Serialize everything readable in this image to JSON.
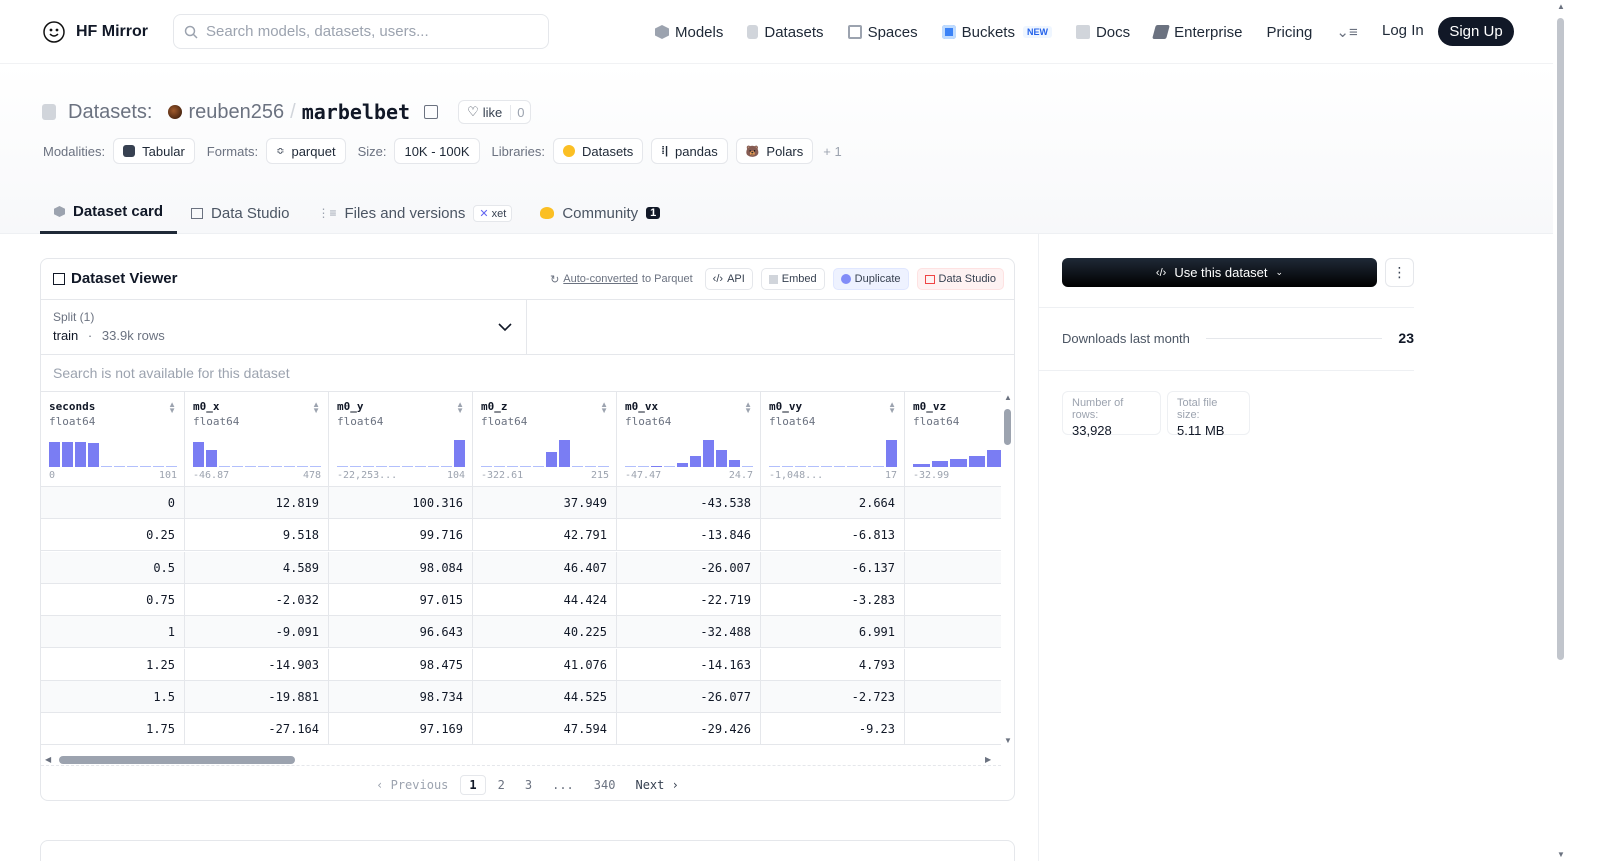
{
  "header": {
    "logo_text": "HF Mirror",
    "search_placeholder": "Search models, datasets, users...",
    "nav": [
      {
        "label": "Models",
        "icon": "models-icon"
      },
      {
        "label": "Datasets",
        "icon": "datasets-icon"
      },
      {
        "label": "Spaces",
        "icon": "spaces-icon"
      },
      {
        "label": "Buckets",
        "icon": "buckets-icon",
        "badge": "NEW"
      },
      {
        "label": "Docs",
        "icon": "docs-icon"
      },
      {
        "label": "Enterprise",
        "icon": "enterprise-icon"
      },
      {
        "label": "Pricing"
      }
    ],
    "login": "Log In",
    "signup": "Sign Up"
  },
  "repo": {
    "type_label": "Datasets:",
    "owner": "reuben256",
    "separator": "/",
    "name": "marbelbet",
    "like_label": "like",
    "like_count": "0",
    "meta": {
      "modalities_label": "Modalities:",
      "modalities": [
        "Tabular"
      ],
      "formats_label": "Formats:",
      "formats": [
        "parquet"
      ],
      "size_label": "Size:",
      "size": "10K - 100K",
      "libraries_label": "Libraries:",
      "libraries": [
        "Datasets",
        "pandas",
        "Polars"
      ],
      "libraries_more": "+ 1"
    },
    "tabs": [
      {
        "label": "Dataset card",
        "active": true
      },
      {
        "label": "Data Studio"
      },
      {
        "label": "Files and versions",
        "badge": "xet"
      },
      {
        "label": "Community",
        "count": "1"
      }
    ]
  },
  "viewer": {
    "title": "Dataset Viewer",
    "autoconv_link": "Auto-converted",
    "autoconv_rest": "to Parquet",
    "actions": [
      "API",
      "Embed",
      "Duplicate",
      "Data Studio"
    ],
    "split_label": "Split (1)",
    "split_name": "train",
    "split_dot": "·",
    "split_rows": "33.9k rows",
    "search_na": "Search is not available for this dataset",
    "columns": [
      {
        "name": "seconds",
        "type": "float64",
        "min": "0",
        "max": "101",
        "hist": [
          0.9,
          0.9,
          0.9,
          0.85,
          0,
          0,
          0,
          0,
          0,
          0
        ]
      },
      {
        "name": "m0_x",
        "type": "float64",
        "min": "-46.87",
        "max": "478",
        "hist": [
          0.9,
          0.6,
          0,
          0,
          0,
          0,
          0,
          0,
          0,
          0
        ]
      },
      {
        "name": "m0_y",
        "type": "float64",
        "min": "-22,253...",
        "max": "104",
        "hist": [
          0,
          0,
          0,
          0,
          0,
          0,
          0,
          0,
          0,
          0.95
        ]
      },
      {
        "name": "m0_z",
        "type": "float64",
        "min": "-322.61",
        "max": "215",
        "hist": [
          0,
          0,
          0,
          0,
          0,
          0.55,
          0.95,
          0,
          0,
          0
        ]
      },
      {
        "name": "m0_vx",
        "type": "float64",
        "min": "-47.47",
        "max": "24.7",
        "hist": [
          0,
          0,
          0.05,
          0,
          0.15,
          0.4,
          0.95,
          0.6,
          0.25,
          0
        ]
      },
      {
        "name": "m0_vy",
        "type": "float64",
        "min": "-1,048...",
        "max": "17",
        "hist": [
          0,
          0,
          0,
          0,
          0,
          0,
          0,
          0,
          0,
          0.95
        ]
      },
      {
        "name": "m0_vz",
        "type": "float64",
        "min": "-32.99",
        "max": "",
        "hist": [
          0.1,
          0.2,
          0.3,
          0.4,
          0.6,
          0.95,
          0.45
        ]
      }
    ],
    "rows": [
      [
        "0",
        "12.819",
        "100.316",
        "37.949",
        "-43.538",
        "2.664",
        ""
      ],
      [
        "0.25",
        "9.518",
        "99.716",
        "42.791",
        "-13.846",
        "-6.813",
        ""
      ],
      [
        "0.5",
        "4.589",
        "98.084",
        "46.407",
        "-26.007",
        "-6.137",
        ""
      ],
      [
        "0.75",
        "-2.032",
        "97.015",
        "44.424",
        "-22.719",
        "-3.283",
        ""
      ],
      [
        "1",
        "-9.091",
        "96.643",
        "40.225",
        "-32.488",
        "6.991",
        ""
      ],
      [
        "1.25",
        "-14.903",
        "98.475",
        "41.076",
        "-14.163",
        "4.793",
        ""
      ],
      [
        "1.5",
        "-19.881",
        "98.734",
        "44.525",
        "-26.077",
        "-2.723",
        ""
      ],
      [
        "1.75",
        "-27.164",
        "97.169",
        "47.594",
        "-29.426",
        "-9.23",
        ""
      ]
    ],
    "pager": {
      "prev": "Previous",
      "pages": [
        "1",
        "2",
        "3",
        "...",
        "340"
      ],
      "current": "1",
      "next": "Next"
    }
  },
  "side": {
    "use_button": "Use this dataset",
    "downloads_label": "Downloads last month",
    "downloads_value": "23",
    "stats": [
      {
        "label": "Number of rows:",
        "value": "33,928"
      },
      {
        "label": "Total file size:",
        "value": "5.11 MB"
      }
    ]
  },
  "colors": {
    "accent": "#6366f1",
    "dark": "#111827"
  }
}
